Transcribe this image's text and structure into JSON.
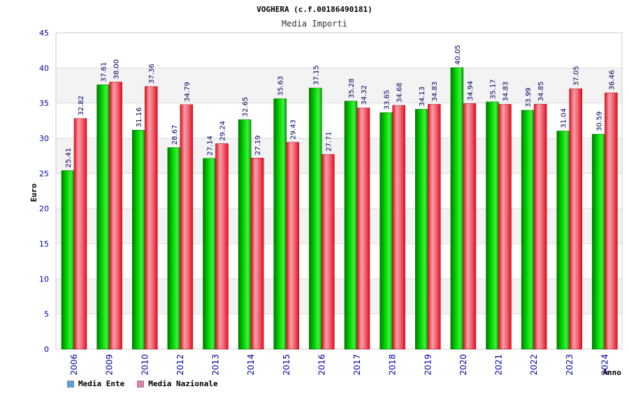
{
  "chart_data": {
    "type": "bar",
    "title": "VOGHERA (c.f.00186490181)",
    "subtitle": "Media Importi",
    "xlabel": "Anno",
    "ylabel": "Euro",
    "ylim": [
      0,
      45
    ],
    "yticks": [
      0,
      5,
      10,
      15,
      20,
      25,
      30,
      35,
      40,
      45
    ],
    "grid": true,
    "legend_position": "bottom-left",
    "categories": [
      "2006",
      "2009",
      "2010",
      "2012",
      "2013",
      "2014",
      "2015",
      "2016",
      "2017",
      "2018",
      "2019",
      "2020",
      "2021",
      "2022",
      "2023",
      "2024"
    ],
    "series": [
      {
        "name": "Media Ente",
        "color": "#00cc00",
        "legend_color": "#5aa0e6",
        "values": [
          25.41,
          37.61,
          31.16,
          28.67,
          27.14,
          32.65,
          35.63,
          37.15,
          35.28,
          33.65,
          34.13,
          40.05,
          35.17,
          33.99,
          31.04,
          30.59
        ]
      },
      {
        "name": "Media Nazionale",
        "color": "#ee1c2c",
        "legend_color": "#e67ab0",
        "values": [
          32.82,
          38.0,
          37.36,
          34.79,
          29.24,
          27.19,
          29.43,
          27.71,
          34.32,
          34.68,
          34.83,
          34.94,
          34.83,
          34.85,
          37.05,
          36.46
        ]
      }
    ]
  },
  "labels": {
    "series0_values": [
      "25.41",
      "37.61",
      "31.16",
      "28.67",
      "27.14",
      "32.65",
      "35.63",
      "37.15",
      "35.28",
      "33.65",
      "34.13",
      "40.05",
      "35.17",
      "33.99",
      "31.04",
      "30.59"
    ],
    "series1_values": [
      "32.82",
      "38.00",
      "37.36",
      "34.79",
      "29.24",
      "27.19",
      "29.43",
      "27.71",
      "34.32",
      "34.68",
      "34.83",
      "34.94",
      "34.83",
      "34.85",
      "37.05",
      "36.46"
    ]
  }
}
